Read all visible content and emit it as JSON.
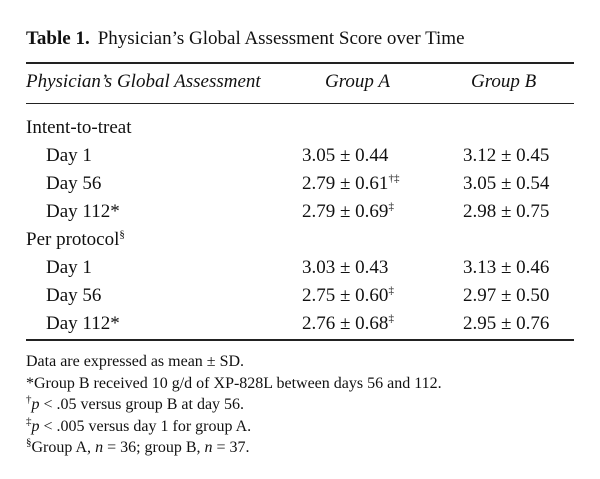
{
  "title": {
    "label": "Table 1.",
    "text": "Physician’s Global Assessment Score over Time"
  },
  "header": {
    "col0": "Physician’s Global Assessment",
    "colA": "Group A",
    "colB": "Group B"
  },
  "sections": [
    {
      "label": "Intent-to-treat",
      "label_sup": "",
      "rows": [
        {
          "label": "Day 1",
          "a": "3.05 ± 0.44",
          "a_sup": "",
          "b": "3.12 ± 0.45",
          "b_sup": ""
        },
        {
          "label": "Day 56",
          "a": "2.79 ± 0.61",
          "a_sup": "†‡",
          "b": "3.05 ± 0.54",
          "b_sup": ""
        },
        {
          "label": "Day 112*",
          "a": "2.79 ± 0.69",
          "a_sup": "‡",
          "b": "2.98 ± 0.75",
          "b_sup": ""
        }
      ]
    },
    {
      "label": "Per protocol",
      "label_sup": "§",
      "rows": [
        {
          "label": "Day 1",
          "a": "3.03 ± 0.43",
          "a_sup": "",
          "b": "3.13 ± 0.46",
          "b_sup": ""
        },
        {
          "label": "Day 56",
          "a": "2.75 ± 0.60",
          "a_sup": "‡",
          "b": "2.97 ± 0.50",
          "b_sup": ""
        },
        {
          "label": "Day 112*",
          "a": "2.76 ± 0.68",
          "a_sup": "‡",
          "b": "2.95 ± 0.76",
          "b_sup": ""
        }
      ]
    }
  ],
  "notes": {
    "n1": "Data are expressed as mean ± SD.",
    "n2": "*Group B received 10 g/d of XP-828L between days 56 and 112.",
    "n3": {
      "sym": "†",
      "p": "p",
      "rest": " < .05 versus group B at day 56."
    },
    "n4": {
      "sym": "‡",
      "p": "p",
      "rest": " < .005 versus day 1 for group A."
    },
    "n5": {
      "sym": "§",
      "a": "Group A, ",
      "n1": "n",
      "b": " = 36; group B, ",
      "n2": "n",
      "c": " = 37."
    }
  }
}
